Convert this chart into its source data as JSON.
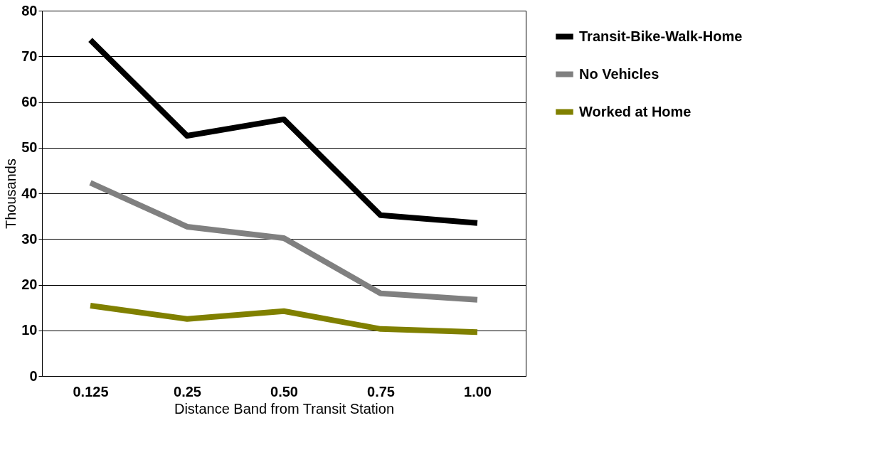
{
  "chart_data": {
    "type": "line",
    "xlabel": "Distance Band from Transit Station",
    "ylabel": "Thousands",
    "categories": [
      "0.125",
      "0.25",
      "0.50",
      "0.75",
      "1.00"
    ],
    "series": [
      {
        "name": "Transit-Bike-Walk-Home",
        "color": "#000000",
        "values": [
          73.6,
          52.6,
          56.2,
          35.2,
          33.5
        ]
      },
      {
        "name": "No Vehicles",
        "color": "#808080",
        "values": [
          42.3,
          32.7,
          30.2,
          18.1,
          16.7
        ]
      },
      {
        "name": "Worked at Home",
        "color": "#808000",
        "values": [
          15.4,
          12.5,
          14.2,
          10.3,
          9.6
        ]
      }
    ],
    "ylim": [
      0,
      80
    ],
    "yticks": [
      0,
      10,
      20,
      30,
      40,
      50,
      60,
      70,
      80
    ],
    "grid": "y",
    "legend": "right",
    "marker": "none",
    "line_style": "solid"
  }
}
